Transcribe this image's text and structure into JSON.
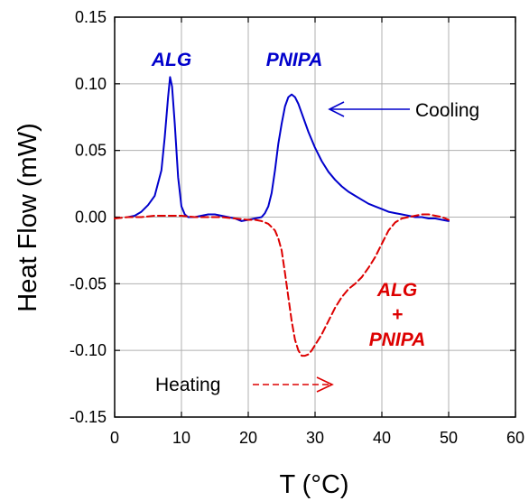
{
  "chart_data": {
    "type": "line",
    "xlabel": "T (°C)",
    "ylabel": "Heat Flow (mW)",
    "xlim": [
      0,
      60
    ],
    "ylim": [
      -0.15,
      0.15
    ],
    "x_ticks": [
      "0",
      "10",
      "20",
      "30",
      "40",
      "50",
      "60"
    ],
    "y_ticks": [
      "0.15",
      "0.10",
      "0.05",
      "0.00",
      "-0.05",
      "-0.10",
      "-0.15"
    ],
    "grid": true,
    "series": [
      {
        "name": "Cooling",
        "color": "#0000cc",
        "style": "solid",
        "x": [
          2,
          3,
          4,
          5,
          6,
          7,
          7.5,
          8,
          8.3,
          8.6,
          9,
          9.5,
          10,
          10.5,
          11,
          12,
          13,
          14,
          15,
          16,
          17,
          18,
          19,
          20,
          21,
          22,
          22.5,
          23,
          23.5,
          24,
          24.5,
          25,
          25.5,
          26,
          26.5,
          27,
          27.5,
          28,
          29,
          30,
          31,
          32,
          33,
          34,
          35,
          36,
          37,
          38,
          39,
          40,
          41,
          42,
          43,
          44,
          45,
          46,
          47,
          48,
          49,
          50
        ],
        "y": [
          0.0,
          0.001,
          0.004,
          0.009,
          0.016,
          0.035,
          0.06,
          0.09,
          0.105,
          0.098,
          0.07,
          0.03,
          0.008,
          0.002,
          0.0,
          0.0,
          0.001,
          0.002,
          0.002,
          0.001,
          0.0,
          -0.001,
          -0.003,
          -0.002,
          -0.001,
          0.0,
          0.003,
          0.008,
          0.018,
          0.035,
          0.055,
          0.07,
          0.083,
          0.09,
          0.092,
          0.09,
          0.085,
          0.078,
          0.064,
          0.052,
          0.042,
          0.034,
          0.028,
          0.023,
          0.019,
          0.016,
          0.013,
          0.01,
          0.008,
          0.006,
          0.004,
          0.003,
          0.002,
          0.001,
          0.0,
          0.0,
          -0.001,
          -0.001,
          -0.002,
          -0.003
        ]
      },
      {
        "name": "Heating",
        "color": "#dd0000",
        "style": "dashed",
        "x": [
          0,
          2,
          4,
          6,
          8,
          10,
          12,
          14,
          16,
          18,
          20,
          21,
          22,
          23,
          24,
          24.5,
          25,
          25.5,
          26,
          26.5,
          27,
          27.5,
          28,
          28.5,
          29,
          29.5,
          30,
          31,
          32,
          33,
          34,
          35,
          36,
          37,
          38,
          39,
          40,
          41,
          42,
          43,
          44,
          45,
          46,
          47,
          48,
          49,
          50
        ],
        "y": [
          -0.001,
          0.0,
          0.0,
          0.001,
          0.001,
          0.001,
          0.0,
          0.0,
          0.0,
          -0.001,
          -0.002,
          -0.002,
          -0.003,
          -0.005,
          -0.01,
          -0.016,
          -0.025,
          -0.042,
          -0.06,
          -0.078,
          -0.092,
          -0.1,
          -0.104,
          -0.104,
          -0.103,
          -0.1,
          -0.096,
          -0.088,
          -0.078,
          -0.068,
          -0.06,
          -0.054,
          -0.05,
          -0.045,
          -0.038,
          -0.03,
          -0.02,
          -0.01,
          -0.004,
          -0.001,
          0.0,
          0.001,
          0.002,
          0.002,
          0.001,
          0.0,
          -0.002
        ]
      }
    ],
    "annotations": [
      {
        "text": "ALG",
        "color": "#0000cc"
      },
      {
        "text": "PNIPA",
        "color": "#0000cc"
      },
      {
        "text": "Cooling",
        "color": "#000000"
      },
      {
        "text": "Heating",
        "color": "#000000"
      },
      {
        "text": "ALG",
        "color": "#dd0000"
      },
      {
        "text": "+",
        "color": "#dd0000"
      },
      {
        "text": "PNIPA",
        "color": "#dd0000"
      }
    ]
  }
}
